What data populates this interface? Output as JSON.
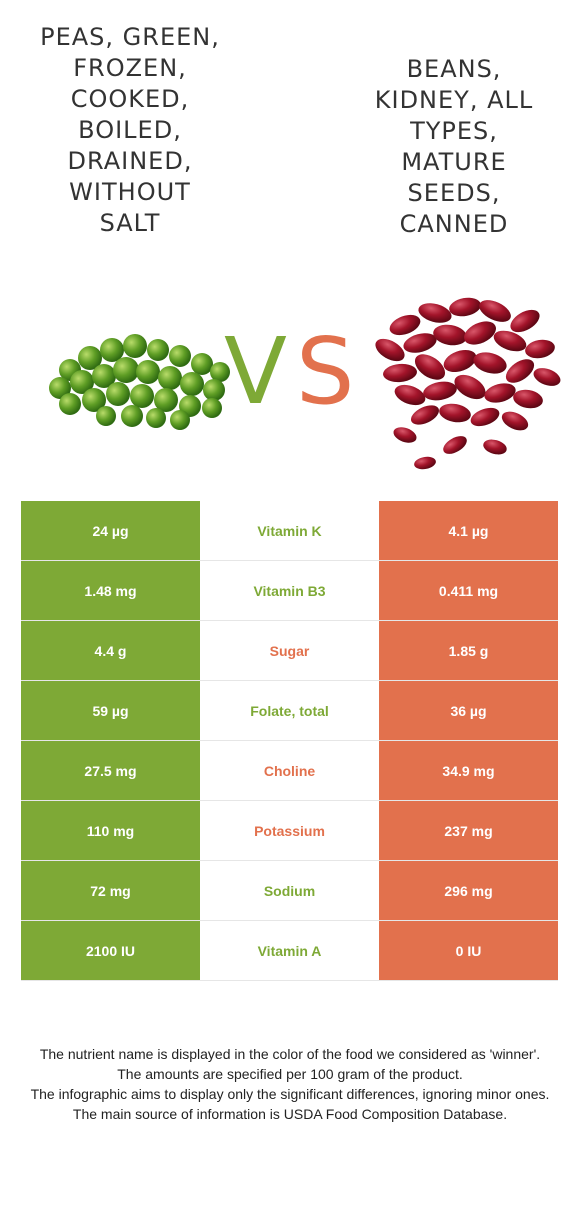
{
  "food_left": {
    "title_lines": [
      "Peas, green,",
      "frozen,",
      "cooked,",
      "boiled,",
      "drained,",
      "without",
      "salt"
    ],
    "color": "#7ea936",
    "image": "green-peas"
  },
  "food_right": {
    "title_lines": [
      "Beans,",
      "kidney, all",
      "types,",
      "mature",
      "seeds,",
      "canned"
    ],
    "color": "#e2714d",
    "image": "red-kidney-beans"
  },
  "vs": {
    "v": "V",
    "s": "S"
  },
  "rows": [
    {
      "left": "24 µg",
      "nutrient": "Vitamin K",
      "right": "4.1 µg",
      "winner": "left"
    },
    {
      "left": "1.48 mg",
      "nutrient": "Vitamin B3",
      "right": "0.411 mg",
      "winner": "left"
    },
    {
      "left": "4.4 g",
      "nutrient": "Sugar",
      "right": "1.85 g",
      "winner": "right"
    },
    {
      "left": "59 µg",
      "nutrient": "Folate, total",
      "right": "36 µg",
      "winner": "left"
    },
    {
      "left": "27.5 mg",
      "nutrient": "Choline",
      "right": "34.9 mg",
      "winner": "right"
    },
    {
      "left": "110 mg",
      "nutrient": "Potassium",
      "right": "237 mg",
      "winner": "right"
    },
    {
      "left": "72 mg",
      "nutrient": "Sodium",
      "right": "296 mg",
      "winner": "left"
    },
    {
      "left": "2100 IU",
      "nutrient": "Vitamin A",
      "right": "0 IU",
      "winner": "left"
    }
  ],
  "footer": [
    "The nutrient name is displayed in the color of the food we considered as 'winner'.",
    "The amounts are specified per 100 gram of the product.",
    "The infographic aims to display only the significant differences, ignoring minor ones.",
    "The main source of information is USDA Food Composition Database."
  ]
}
